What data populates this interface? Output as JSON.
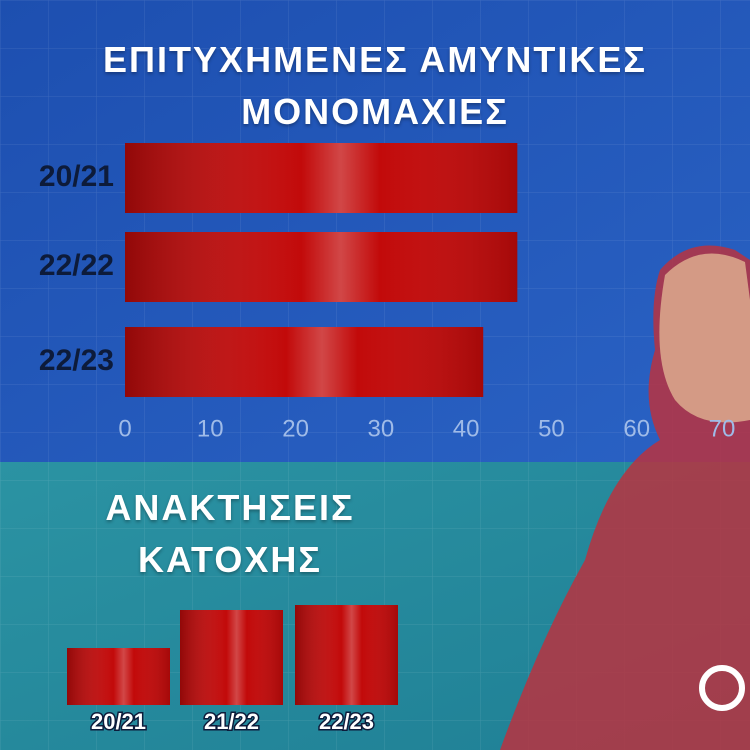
{
  "chart_data": [
    {
      "type": "hbar",
      "title": "ΕΠΙΤΥΧΗΜΕΝΕΣ ΑΜΥΝΤΙΚΕΣ ΜΟΝΟΜΑΧΙΕΣ",
      "categories": [
        "20/21",
        "22/22",
        "22/23"
      ],
      "values": [
        46,
        46,
        42
      ],
      "color": "#c20a0a",
      "xlim": [
        0,
        70
      ],
      "xticks": [
        0,
        10,
        20,
        30,
        40,
        50,
        60,
        70
      ]
    },
    {
      "type": "bar",
      "title": "ΑΝΑΚΤΗΣΕΙΣ ΚΑΤΟΧΗΣ",
      "categories": [
        "20/21",
        "21/22",
        "22/23"
      ],
      "values": [
        57,
        95,
        100
      ],
      "color": "#c20a0a",
      "ylim": [
        0,
        100
      ]
    }
  ]
}
